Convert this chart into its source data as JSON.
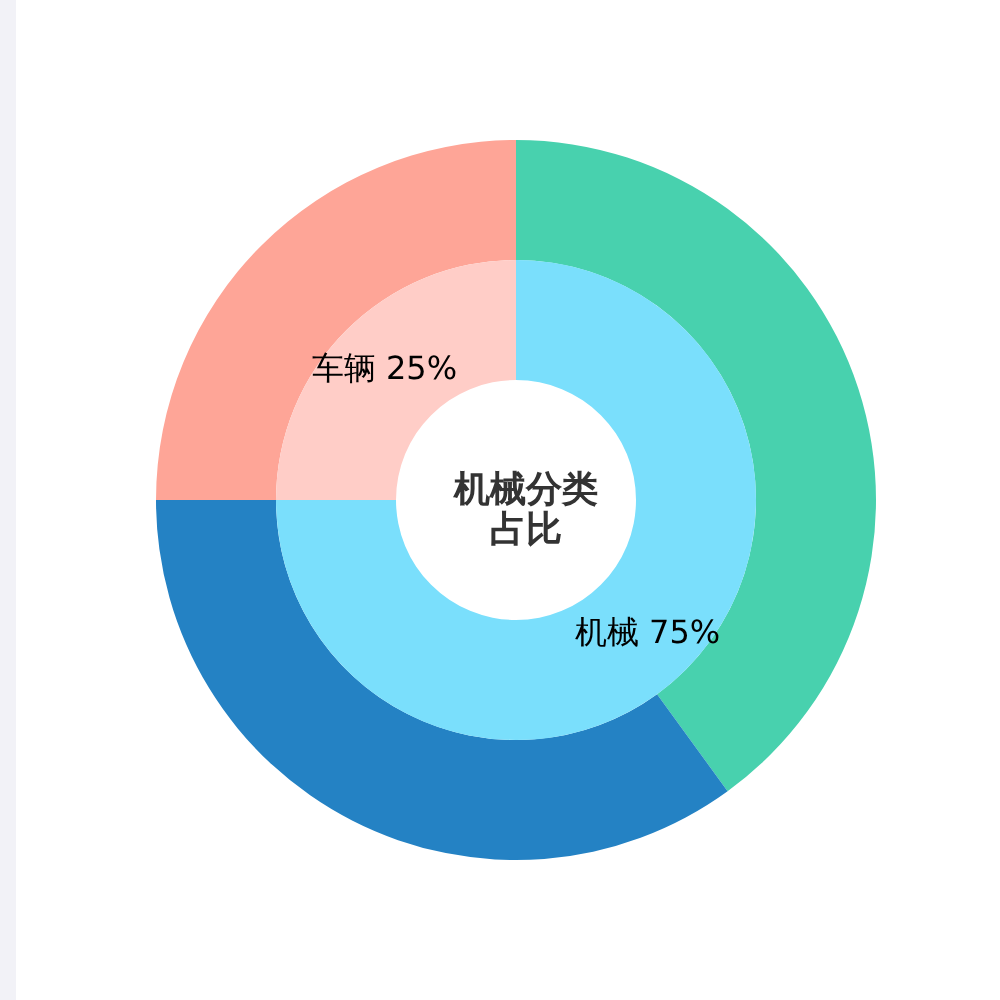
{
  "chart_data": [
    {
      "type": "donut",
      "title": "机械分类占比",
      "categories": [
        "机械",
        "车辆"
      ],
      "values": [
        75,
        25
      ],
      "colors": [
        "#7adffc",
        "#ffcdc7"
      ],
      "value_labels": [
        "75%",
        "25%"
      ]
    },
    {
      "type": "donut",
      "categories": [
        null,
        null,
        null
      ],
      "values": [
        40,
        35,
        25
      ],
      "colors": [
        "#48d1ae",
        "#2482c4",
        "#fea597"
      ]
    }
  ]
}
